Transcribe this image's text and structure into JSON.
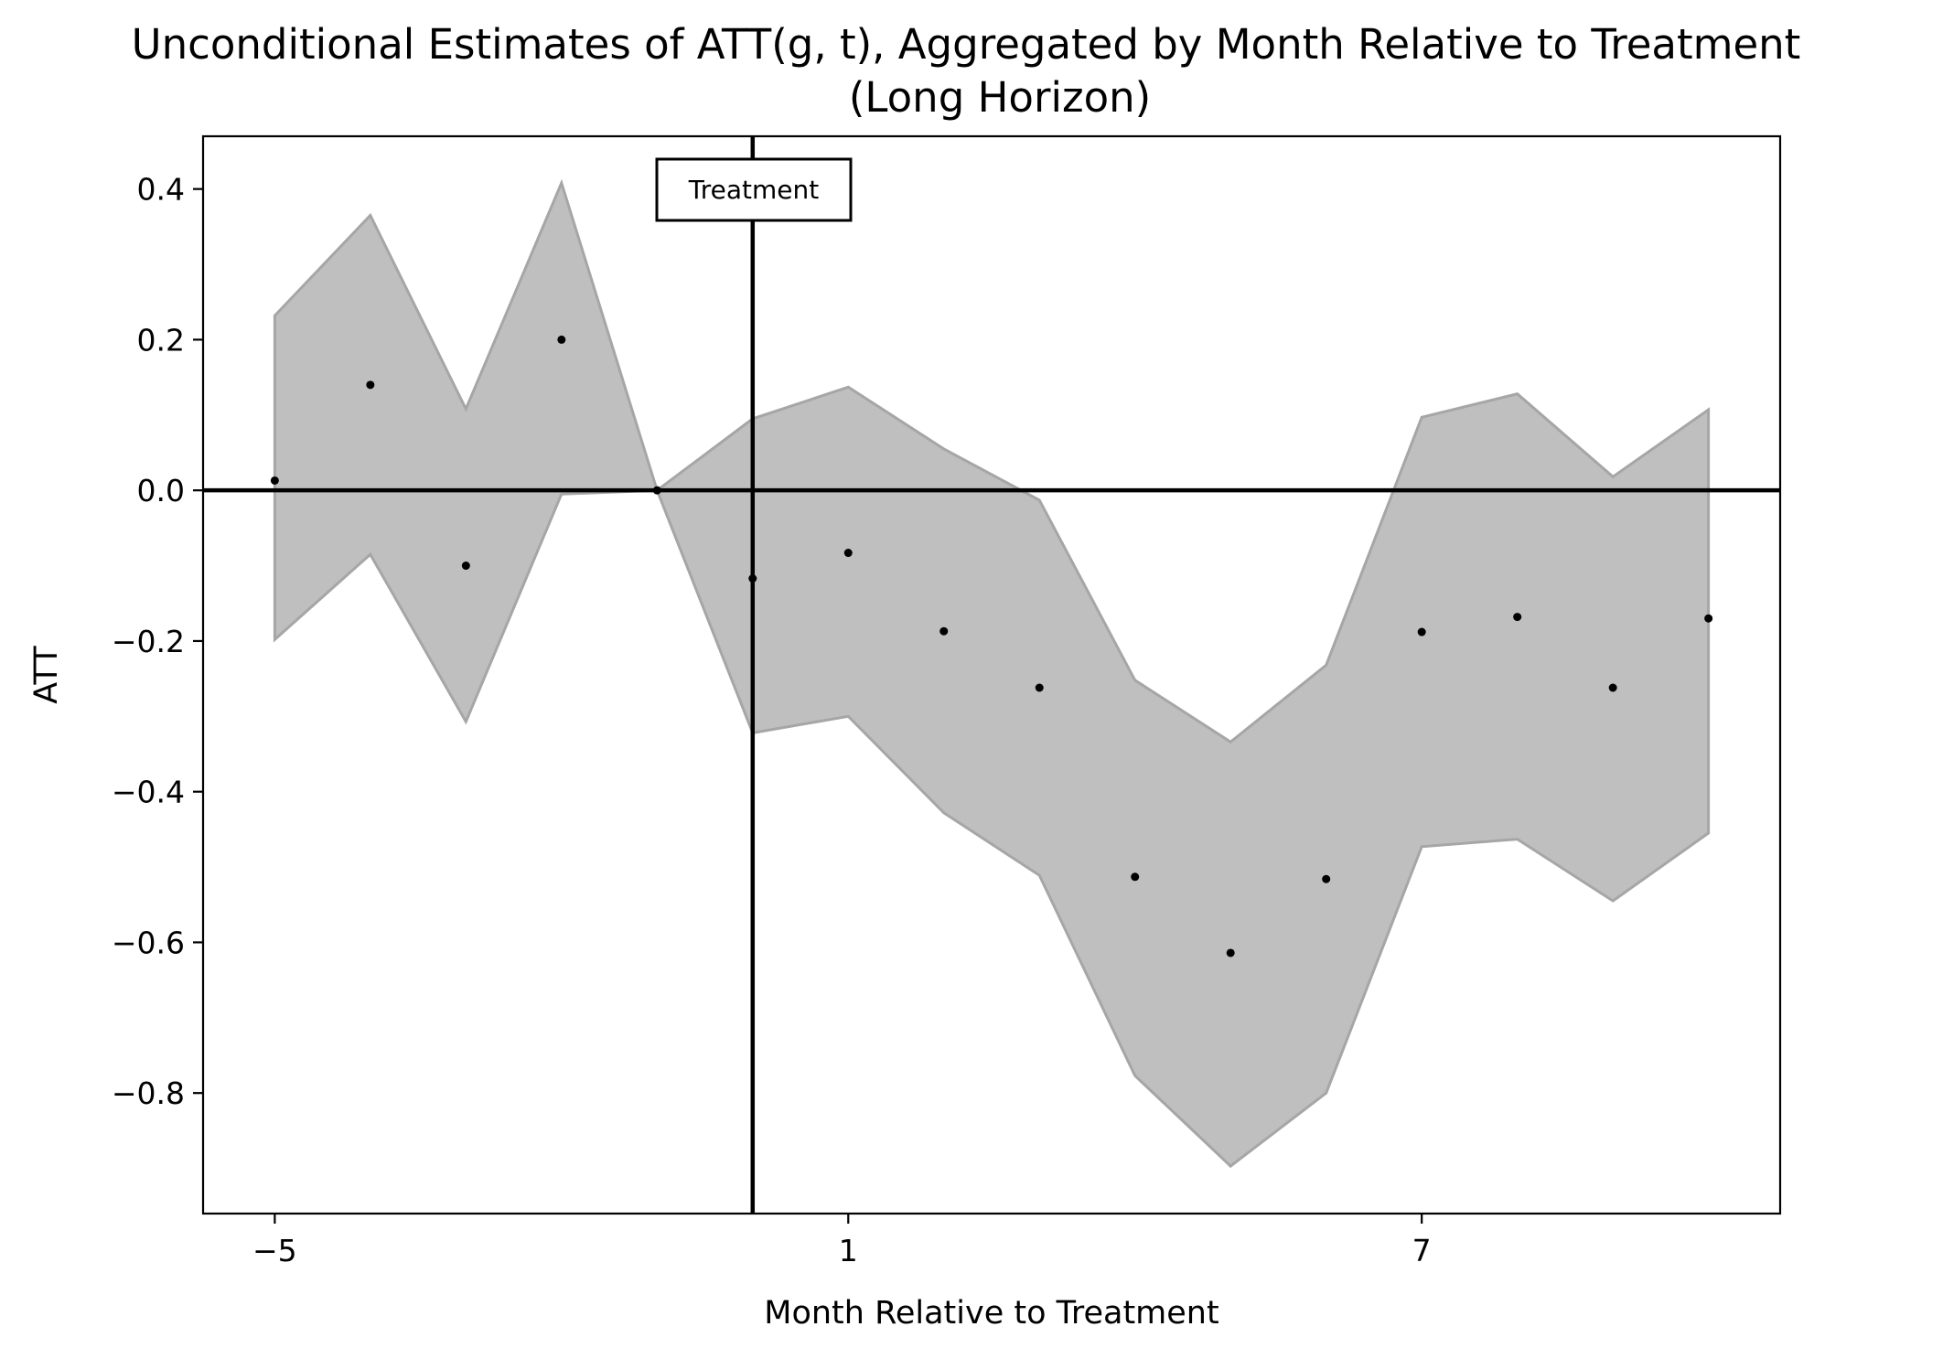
{
  "chart_data": {
    "type": "line",
    "title": "Unconditional Estimates of ATT(g, t), Aggregated by Month Relative to Treatment",
    "subtitle": "(Long Horizon)",
    "xlabel": "Month Relative to Treatment",
    "ylabel": "ATT",
    "xlim": [
      -5.75,
      10.75
    ],
    "ylim": [
      -0.96,
      0.47
    ],
    "x_ticks": [
      -5,
      1,
      7
    ],
    "x_tick_labels": [
      "−5",
      "1",
      "7"
    ],
    "y_ticks": [
      0.4,
      0.2,
      0.0,
      -0.2,
      -0.4,
      -0.6,
      -0.8
    ],
    "y_tick_labels": [
      "0.4",
      "0.2",
      "0.0",
      "−0.2",
      "−0.4",
      "−0.6",
      "−0.8"
    ],
    "grid": false,
    "x": [
      -5,
      -4,
      -3,
      -2,
      -1,
      0,
      1,
      2,
      3,
      4,
      5,
      6,
      7,
      8,
      9,
      10
    ],
    "estimates": [
      0.013,
      0.14,
      -0.1,
      0.2,
      0.0,
      -0.117,
      -0.083,
      -0.187,
      -0.262,
      -0.513,
      -0.614,
      -0.516,
      -0.188,
      -0.168,
      -0.262,
      -0.17
    ],
    "ci_upper": [
      0.232,
      0.365,
      0.108,
      0.408,
      0.0,
      0.095,
      0.137,
      0.055,
      -0.013,
      -0.252,
      -0.334,
      -0.232,
      0.097,
      0.128,
      0.018,
      0.107
    ],
    "ci_lower": [
      -0.198,
      -0.085,
      -0.307,
      -0.005,
      0.0,
      -0.322,
      -0.3,
      -0.428,
      -0.511,
      -0.777,
      -0.897,
      -0.8,
      -0.473,
      -0.463,
      -0.545,
      -0.455
    ],
    "treatment_line_x": 0,
    "zero_line_y": 0,
    "annotation": "Treatment",
    "colors": {
      "band_fill": "#bfbfbf",
      "band_edge": "#a6a6a6",
      "points": "#000000",
      "lines": "#000000"
    }
  }
}
